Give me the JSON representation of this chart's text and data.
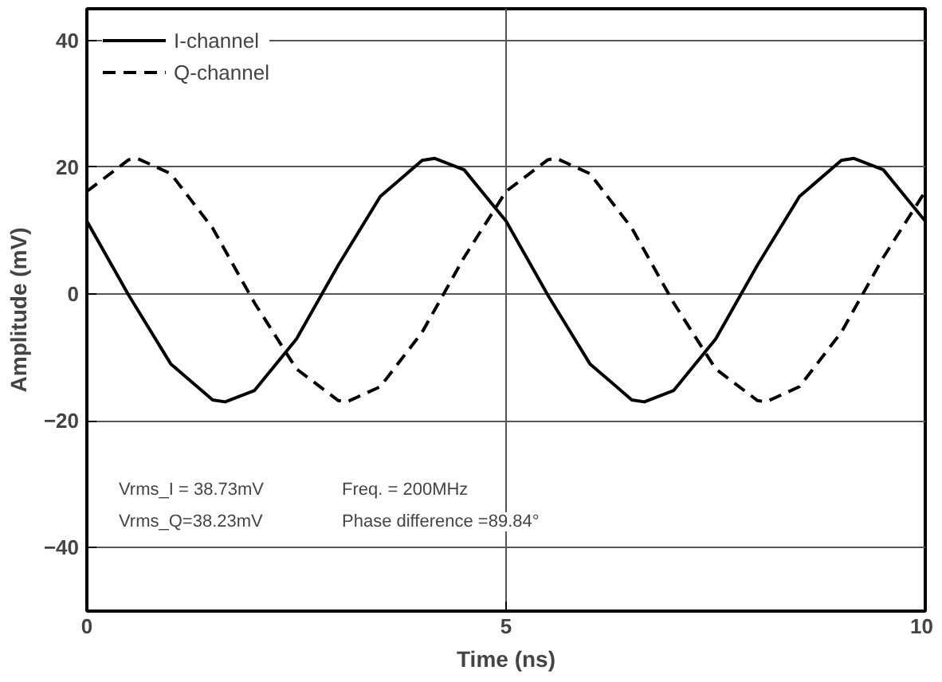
{
  "chart_data": {
    "type": "line",
    "xlabel": "Time (ns)",
    "ylabel": "Amplitude (mV)",
    "xlim": [
      0,
      10
    ],
    "ylim": [
      -50,
      45
    ],
    "xticks": [
      0,
      5,
      10
    ],
    "yticks": [
      -40,
      -20,
      0,
      20,
      40
    ],
    "grid": true,
    "legend": "top left",
    "marker": "none",
    "series": [
      {
        "name": "I-channel",
        "color": "#000000",
        "line_style": "solid",
        "x": [
          0,
          0.5,
          1,
          1.5,
          1.65,
          2,
          2.5,
          3,
          3.5,
          4,
          4.15,
          4.5,
          5,
          5.5,
          6,
          6.5,
          6.65,
          7,
          7.5,
          8,
          8.5,
          9,
          9.15,
          9.5,
          10
        ],
        "values": [
          11.5,
          -0.2,
          -11,
          -16.7,
          -17,
          -15.2,
          -7.1,
          4.6,
          15.4,
          21.1,
          21.4,
          19.6,
          11.5,
          -0.2,
          -11,
          -16.7,
          -17,
          -15.2,
          -7.1,
          4.6,
          15.4,
          21.1,
          21.4,
          19.6,
          11.5
        ]
      },
      {
        "name": "Q-channel",
        "color": "#000000",
        "line_style": "dashed",
        "x": [
          0,
          0.5,
          0.6,
          1,
          1.5,
          2,
          2.5,
          3,
          3.1,
          3.5,
          4,
          4.5,
          5,
          5.5,
          5.6,
          6,
          6.5,
          7,
          7.5,
          8,
          8.1,
          8.5,
          9,
          9.5,
          10
        ],
        "values": [
          16.2,
          21.2,
          21.4,
          19,
          10.4,
          -1.4,
          -11.8,
          -16.8,
          -17,
          -14.6,
          -6,
          5.8,
          16.2,
          21.2,
          21.4,
          19,
          10.4,
          -1.4,
          -11.8,
          -16.8,
          -17,
          -14.6,
          -6,
          5.8,
          16.2
        ]
      }
    ],
    "annotations": [
      "Vrms_I = 38.73mV",
      "Freq. = 200MHz",
      "Vrms_Q=38.23mV",
      "Phase difference =89.84°"
    ]
  }
}
